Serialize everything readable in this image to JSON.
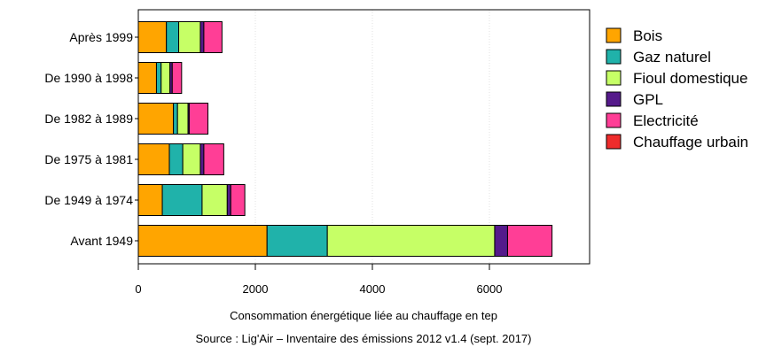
{
  "chart_data": {
    "type": "bar",
    "orientation": "horizontal",
    "stacked": true,
    "categories": [
      "Après 1999",
      "De 1990 à 1998",
      "De 1982 à 1989",
      "De 1975 à 1981",
      "De 1949 à 1974",
      "Avant 1949"
    ],
    "series": [
      {
        "name": "Bois",
        "color": "#FFA500",
        "values": [
          480,
          310,
          600,
          530,
          410,
          2200
        ]
      },
      {
        "name": "Gaz naturel",
        "color": "#20B2AA",
        "values": [
          210,
          80,
          70,
          230,
          680,
          1030
        ]
      },
      {
        "name": "Fioul domestique",
        "color": "#C6FF66",
        "values": [
          370,
          150,
          180,
          300,
          430,
          2860
        ]
      },
      {
        "name": "GPL",
        "color": "#551A8B",
        "values": [
          60,
          40,
          20,
          60,
          60,
          220
        ]
      },
      {
        "name": "Electricité",
        "color": "#FF3E96",
        "values": [
          310,
          160,
          320,
          340,
          240,
          760
        ]
      },
      {
        "name": "Chauffage urbain",
        "color": "#EE2C2C",
        "values": [
          0,
          0,
          0,
          0,
          0,
          0
        ]
      }
    ],
    "xlim": [
      0,
      7800
    ],
    "xticks": [
      0,
      2000,
      4000,
      6000
    ],
    "xlabel": "Consommation énergétique liée au chauffage en tep",
    "caption": "Source : Lig'Air – Inventaire des émissions 2012 v1.4 (sept. 2017)",
    "grid": true,
    "legend_position": "right"
  }
}
